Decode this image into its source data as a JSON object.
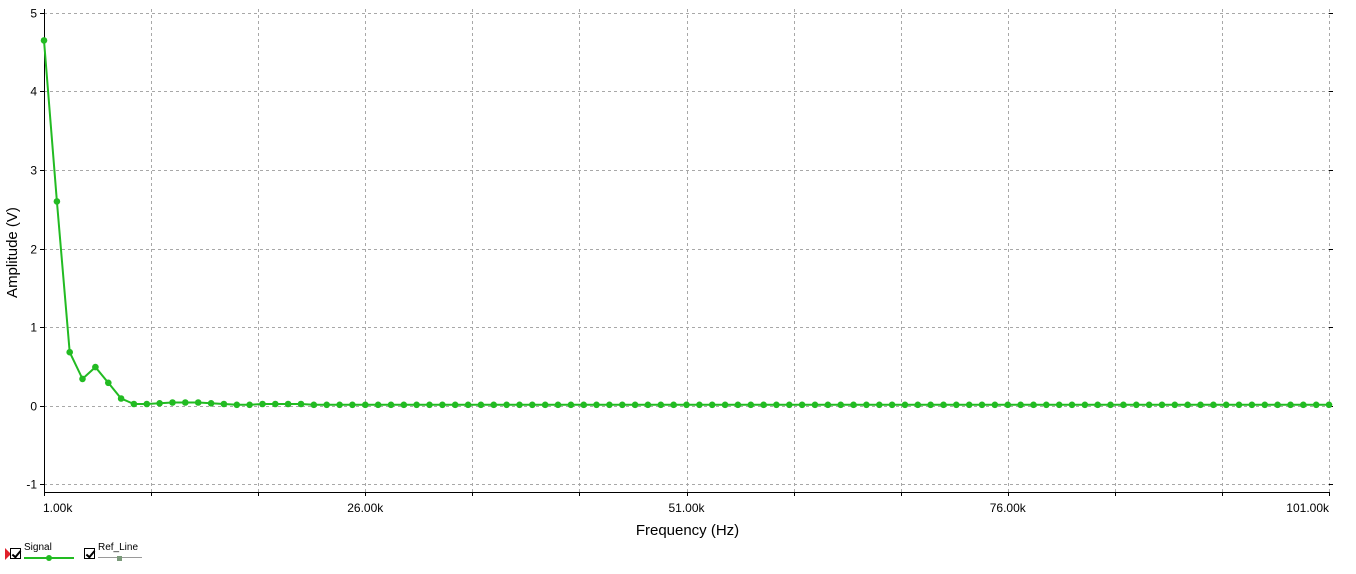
{
  "chart_data": {
    "type": "line",
    "xlabel": "Frequency (Hz)",
    "ylabel": "Amplitude (V)",
    "xlim": [
      1000,
      101000
    ],
    "ylim": [
      -1.1,
      5.05
    ],
    "x_ticks": [
      1000,
      26000,
      51000,
      76000,
      101000
    ],
    "x_tick_labels": [
      "1.00k",
      "26.00k",
      "51.00k",
      "76.00k",
      "101.00k"
    ],
    "x_minor_grid": [
      9333,
      17667,
      34333,
      42667,
      59333,
      67667,
      84333,
      92667
    ],
    "y_ticks": [
      -1,
      0,
      1,
      2,
      3,
      4,
      5
    ],
    "y_tick_labels": [
      "-1",
      "0",
      "1",
      "2",
      "3",
      "4",
      "5"
    ],
    "grid": true,
    "series": [
      {
        "name": "Signal",
        "color": "#22bb22",
        "x_start": 1000,
        "x_step": 1000,
        "values": [
          4.65,
          2.6,
          0.68,
          0.34,
          0.49,
          0.29,
          0.09,
          0.02,
          0.02,
          0.03,
          0.04,
          0.04,
          0.04,
          0.03,
          0.02,
          0.01,
          0.01,
          0.02,
          0.02,
          0.02,
          0.02,
          0.01,
          0.01,
          0.01,
          0.01,
          0.01,
          0.01,
          0.01,
          0.01,
          0.01,
          0.01,
          0.01,
          0.01,
          0.01,
          0.01,
          0.01,
          0.01,
          0.01,
          0.01,
          0.01,
          0.01,
          0.01,
          0.01,
          0.01,
          0.01,
          0.01,
          0.01,
          0.01,
          0.01,
          0.01,
          0.01,
          0.01,
          0.01,
          0.01,
          0.01,
          0.01,
          0.01,
          0.01,
          0.01,
          0.01,
          0.01,
          0.01,
          0.01,
          0.01,
          0.01,
          0.01,
          0.01,
          0.01,
          0.01,
          0.01,
          0.01,
          0.01,
          0.01,
          0.01,
          0.01,
          0.01,
          0.01,
          0.01,
          0.01,
          0.01,
          0.01,
          0.01,
          0.01,
          0.01,
          0.01,
          0.01,
          0.01,
          0.01,
          0.01,
          0.01,
          0.01,
          0.01,
          0.01,
          0.01,
          0.01,
          0.01,
          0.01,
          0.01,
          0.01,
          0.01,
          0.01
        ]
      }
    ],
    "legend": {
      "placement": "bottom-left",
      "items": [
        {
          "label": "Signal",
          "checked": true,
          "color": "#22bb22",
          "marker": "circle"
        },
        {
          "label": "Ref_Line",
          "checked": true,
          "color": "#9a9a9a",
          "marker": "square"
        }
      ]
    }
  }
}
